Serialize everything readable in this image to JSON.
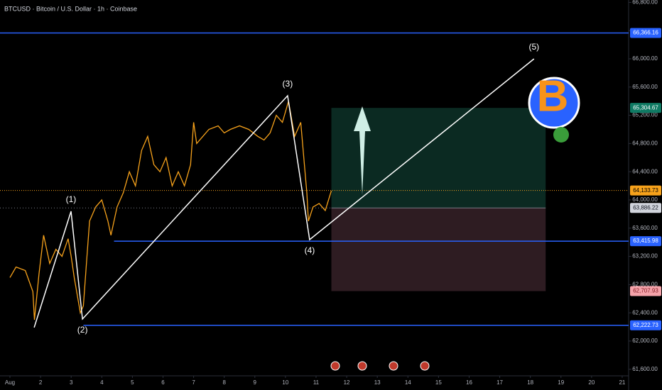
{
  "chart_data": {
    "type": "line",
    "title": "BTCUSD · Bitcoin / U.S. Dollar · 1h · Coinbase",
    "xlim": [
      0.675,
      21.21
    ],
    "ylim": [
      61507,
      66834
    ],
    "xticks": [
      {
        "value": 1,
        "label": "Aug"
      },
      2,
      3,
      4,
      5,
      6,
      7,
      8,
      9,
      10,
      11,
      12,
      13,
      14,
      15,
      16,
      17,
      18,
      19,
      20,
      21
    ],
    "yticks": [
      {
        "value": 61600,
        "label": "61,600.00"
      },
      {
        "value": 62000,
        "label": "62,000.00"
      },
      {
        "value": 62400,
        "label": "62,400.00"
      },
      {
        "value": 62800,
        "label": "62,800.00"
      },
      {
        "value": 63200,
        "label": "63,200.00"
      },
      {
        "value": 63600,
        "label": "63,600.00"
      },
      {
        "value": 64000,
        "label": "64,000.00"
      },
      {
        "value": 64400,
        "label": "64,400.00"
      },
      {
        "value": 64800,
        "label": "64,800.00"
      },
      {
        "value": 65200,
        "label": "65,200.00"
      },
      {
        "value": 65600,
        "label": "65,600.00"
      },
      {
        "value": 66000,
        "label": "66,000.00"
      },
      {
        "value": 66400,
        "label": "66,400.00"
      },
      {
        "value": 66800,
        "label": "66,800.00"
      }
    ],
    "series": [
      {
        "name": "BTCUSD",
        "color": "#f7a21b",
        "x": [
          1.0,
          1.2,
          1.5,
          1.75,
          1.8,
          1.95,
          2.1,
          2.3,
          2.5,
          2.7,
          2.9,
          3.0,
          3.1,
          3.3,
          3.4,
          3.5,
          3.6,
          3.8,
          4.0,
          4.2,
          4.3,
          4.5,
          4.7,
          4.9,
          5.1,
          5.3,
          5.5,
          5.7,
          5.9,
          6.1,
          6.3,
          6.5,
          6.7,
          6.9,
          7.0,
          7.1,
          7.3,
          7.5,
          7.8,
          8.0,
          8.2,
          8.5,
          8.8,
          9.1,
          9.3,
          9.5,
          9.7,
          9.9,
          10.1,
          10.3,
          10.5,
          10.6,
          10.7,
          10.75,
          10.9,
          11.1,
          11.3,
          11.5
        ],
        "values": [
          62900,
          63050,
          63000,
          62700,
          62300,
          62950,
          63500,
          63100,
          63300,
          63200,
          63450,
          63200,
          62900,
          62400,
          62500,
          63100,
          63700,
          63900,
          64000,
          63700,
          63500,
          63900,
          64100,
          64400,
          64200,
          64700,
          64900,
          64500,
          64400,
          64600,
          64200,
          64400,
          64200,
          64500,
          65100,
          64800,
          64900,
          65000,
          65050,
          64950,
          65000,
          65050,
          65000,
          64900,
          64850,
          64950,
          65200,
          65100,
          65400,
          64900,
          65100,
          64600,
          64100,
          63700,
          63900,
          63950,
          63850,
          64130
        ]
      }
    ],
    "levels": [
      {
        "value": 66366.16,
        "label": "66,366.16",
        "color": "#2962ff",
        "from": 0.675
      },
      {
        "value": 63415.98,
        "label": "63,415.98",
        "color": "#2962ff",
        "from": 4.4
      },
      {
        "value": 62222.73,
        "label": "62,222.73",
        "color": "#2962ff",
        "from": 3.4
      }
    ],
    "last_price": {
      "value": 64133.73,
      "label": "64,133.73",
      "color": "#f7a21b"
    },
    "position": {
      "from": 11.5,
      "to": 18.5,
      "entry": {
        "value": 63886.22,
        "label": "63,886.22"
      },
      "target": {
        "value": 65304.67,
        "label": "65,304.67"
      },
      "stop": {
        "value": 62707.93,
        "label": "62,707.93"
      }
    },
    "waves": [
      {
        "label": "(1)",
        "x": 2.995,
        "y": 63839,
        "pos": "above"
      },
      {
        "label": "(2)",
        "x": 3.37,
        "y": 62312,
        "pos": "below"
      },
      {
        "label": "(3)",
        "x": 10.07,
        "y": 65477,
        "pos": "above"
      },
      {
        "label": "(4)",
        "x": 10.79,
        "y": 63437,
        "pos": "below"
      },
      {
        "label": "(5)",
        "x": 18.12,
        "y": 66000,
        "pos": "above"
      }
    ],
    "wave_start": {
      "x": 1.79,
      "y": 62191
    }
  }
}
